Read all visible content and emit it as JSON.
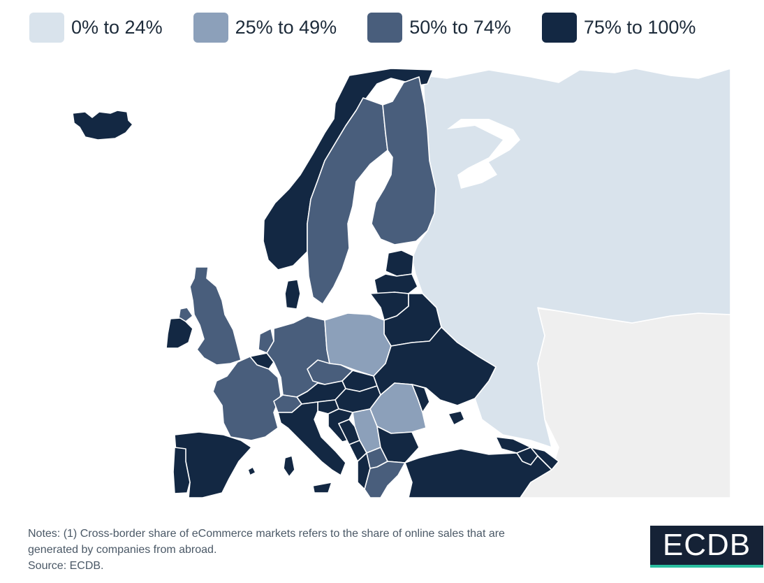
{
  "legend": {
    "items": [
      {
        "label": "0% to 24%",
        "color": "#d9e3ec"
      },
      {
        "label": "25% to 49%",
        "color": "#8ca0ba"
      },
      {
        "label": "50% to 74%",
        "color": "#495e7c"
      },
      {
        "label": "75% to 100%",
        "color": "#132843"
      }
    ]
  },
  "map": {
    "no_data_color": "#efefef",
    "border_color": "#ffffff"
  },
  "notes": {
    "line1": "Notes: (1) Cross-border share of eCommerce markets refers to the share of online sales that are",
    "line2": "generated by companies from abroad.",
    "line3": "Source: ECDB."
  },
  "logo": {
    "text": "ECDB",
    "accent": "#2bbfa0"
  }
}
